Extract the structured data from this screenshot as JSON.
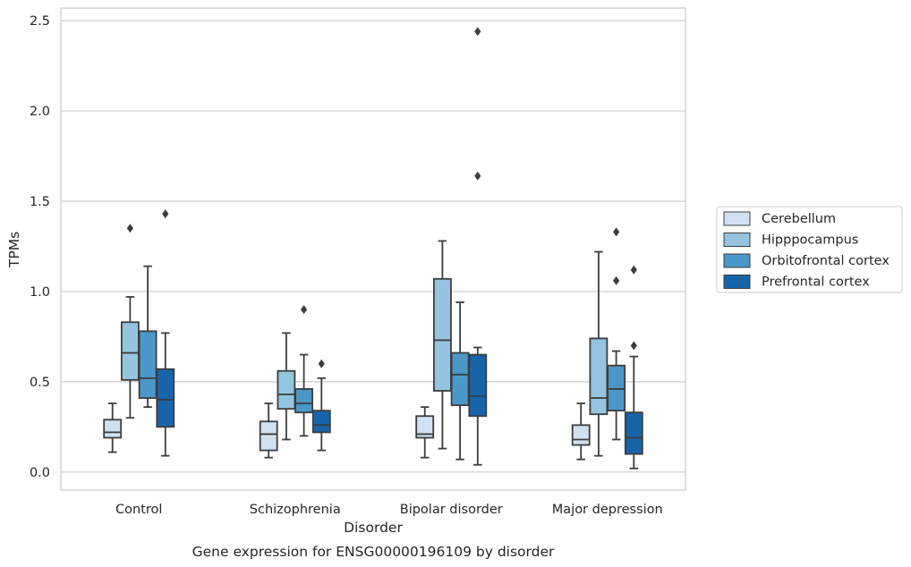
{
  "chart_data": {
    "type": "box",
    "xlabel": "Disorder",
    "ylabel": "TPMs",
    "caption": "Gene expression for ENSG00000196109 by disorder",
    "ylim": [
      -0.1,
      2.57
    ],
    "yticks": [
      "0.0",
      "0.5",
      "1.0",
      "1.5",
      "2.0",
      "2.5"
    ],
    "grid": "horizontal",
    "legend_position": "right",
    "categories": [
      "Control",
      "Schizophrenia",
      "Bipolar disorder",
      "Major depression"
    ],
    "series": [
      {
        "name": "Cerebellum",
        "color": "#d0e1f2",
        "boxes": [
          {
            "whisker_low": 0.11,
            "q1": 0.19,
            "median": 0.22,
            "q3": 0.29,
            "whisker_high": 0.38,
            "outliers": []
          },
          {
            "whisker_low": 0.08,
            "q1": 0.12,
            "median": 0.21,
            "q3": 0.28,
            "whisker_high": 0.38,
            "outliers": []
          },
          {
            "whisker_low": 0.08,
            "q1": 0.19,
            "median": 0.21,
            "q3": 0.31,
            "whisker_high": 0.36,
            "outliers": []
          },
          {
            "whisker_low": 0.07,
            "q1": 0.15,
            "median": 0.18,
            "q3": 0.26,
            "whisker_high": 0.38,
            "outliers": []
          }
        ]
      },
      {
        "name": "Hipppocampus",
        "color": "#94c4df",
        "boxes": [
          {
            "whisker_low": 0.3,
            "q1": 0.51,
            "median": 0.66,
            "q3": 0.83,
            "whisker_high": 0.97,
            "outliers": [
              1.35
            ]
          },
          {
            "whisker_low": 0.18,
            "q1": 0.35,
            "median": 0.43,
            "q3": 0.56,
            "whisker_high": 0.77,
            "outliers": []
          },
          {
            "whisker_low": 0.13,
            "q1": 0.45,
            "median": 0.73,
            "q3": 1.07,
            "whisker_high": 1.28,
            "outliers": []
          },
          {
            "whisker_low": 0.09,
            "q1": 0.32,
            "median": 0.41,
            "q3": 0.74,
            "whisker_high": 1.22,
            "outliers": []
          }
        ]
      },
      {
        "name": "Orbitofrontal cortex",
        "color": "#4a98c9",
        "boxes": [
          {
            "whisker_low": 0.36,
            "q1": 0.41,
            "median": 0.52,
            "q3": 0.78,
            "whisker_high": 1.14,
            "outliers": []
          },
          {
            "whisker_low": 0.2,
            "q1": 0.33,
            "median": 0.38,
            "q3": 0.46,
            "whisker_high": 0.65,
            "outliers": [
              0.9
            ]
          },
          {
            "whisker_low": 0.07,
            "q1": 0.37,
            "median": 0.54,
            "q3": 0.66,
            "whisker_high": 0.94,
            "outliers": []
          },
          {
            "whisker_low": 0.18,
            "q1": 0.34,
            "median": 0.46,
            "q3": 0.59,
            "whisker_high": 0.67,
            "outliers": [
              1.06,
              1.33
            ]
          }
        ]
      },
      {
        "name": "Prefrontal cortex",
        "color": "#1764ab",
        "boxes": [
          {
            "whisker_low": 0.09,
            "q1": 0.25,
            "median": 0.4,
            "q3": 0.57,
            "whisker_high": 0.77,
            "outliers": [
              1.43
            ]
          },
          {
            "whisker_low": 0.12,
            "q1": 0.22,
            "median": 0.26,
            "q3": 0.34,
            "whisker_high": 0.52,
            "outliers": [
              0.6
            ]
          },
          {
            "whisker_low": 0.04,
            "q1": 0.31,
            "median": 0.42,
            "q3": 0.65,
            "whisker_high": 0.69,
            "outliers": [
              1.64,
              2.44
            ]
          },
          {
            "whisker_low": 0.02,
            "q1": 0.1,
            "median": 0.19,
            "q3": 0.33,
            "whisker_high": 0.64,
            "outliers": [
              0.7,
              1.12
            ]
          }
        ]
      }
    ]
  }
}
